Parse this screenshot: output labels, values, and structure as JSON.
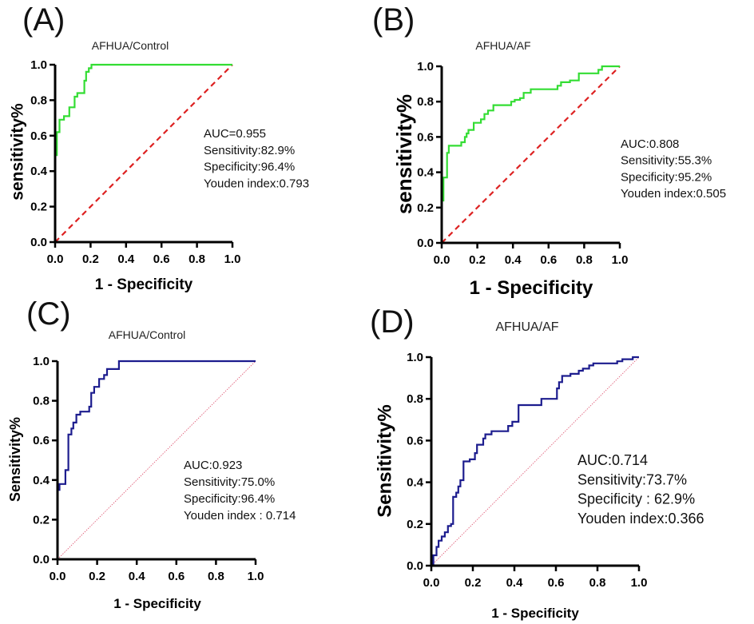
{
  "chart_data": [
    {
      "panel_label": "(A)",
      "type": "line",
      "title": "AFHUA/Control",
      "xlabel": "1 - Specificity",
      "ylabel": "sensitivity%",
      "xlim": [
        0,
        1
      ],
      "ylim": [
        0,
        1
      ],
      "xticks": [
        "0.0",
        "0.2",
        "0.4",
        "0.6",
        "0.8",
        "1.0"
      ],
      "yticks": [
        "0.0",
        "0.2",
        "0.4",
        "0.6",
        "0.8",
        "1.0"
      ],
      "curve_color": "#33dd33",
      "reference_color": "#dd2222",
      "reference_style": "dashed",
      "stats": [
        "AUC=0.955",
        "Sensitivity:82.9%",
        "Specificity:96.4%",
        "Youden index:0.793"
      ],
      "points": [
        [
          0,
          0
        ],
        [
          0,
          0.49
        ],
        [
          0.01,
          0.49
        ],
        [
          0.01,
          0.62
        ],
        [
          0.025,
          0.62
        ],
        [
          0.025,
          0.69
        ],
        [
          0.05,
          0.69
        ],
        [
          0.05,
          0.71
        ],
        [
          0.08,
          0.71
        ],
        [
          0.08,
          0.76
        ],
        [
          0.11,
          0.76
        ],
        [
          0.11,
          0.82
        ],
        [
          0.125,
          0.82
        ],
        [
          0.125,
          0.84
        ],
        [
          0.165,
          0.84
        ],
        [
          0.165,
          0.91
        ],
        [
          0.175,
          0.91
        ],
        [
          0.175,
          0.96
        ],
        [
          0.19,
          0.96
        ],
        [
          0.19,
          0.98
        ],
        [
          0.205,
          0.98
        ],
        [
          0.205,
          1
        ],
        [
          1,
          1
        ]
      ]
    },
    {
      "panel_label": "(B)",
      "type": "line",
      "title": "AFHUA/AF",
      "xlabel": "1 - Specificity",
      "ylabel": "sensitivity%",
      "xlim": [
        0,
        1
      ],
      "ylim": [
        0,
        1
      ],
      "xticks": [
        "0.0",
        "0.2",
        "0.4",
        "0.6",
        "0.8",
        "1.0"
      ],
      "yticks": [
        "0.0",
        "0.2",
        "0.4",
        "0.6",
        "0.8",
        "1.0"
      ],
      "curve_color": "#33dd33",
      "reference_color": "#dd2222",
      "reference_style": "dashed",
      "stats": [
        "AUC:0.808",
        "Sensitivity:55.3%",
        "Specificity:95.2%",
        "Youden index:0.505"
      ],
      "points": [
        [
          0,
          0
        ],
        [
          0,
          0.24
        ],
        [
          0.01,
          0.24
        ],
        [
          0.01,
          0.37
        ],
        [
          0.03,
          0.37
        ],
        [
          0.03,
          0.51
        ],
        [
          0.04,
          0.51
        ],
        [
          0.04,
          0.55
        ],
        [
          0.11,
          0.55
        ],
        [
          0.11,
          0.57
        ],
        [
          0.13,
          0.57
        ],
        [
          0.13,
          0.6
        ],
        [
          0.14,
          0.6
        ],
        [
          0.14,
          0.62
        ],
        [
          0.15,
          0.62
        ],
        [
          0.15,
          0.64
        ],
        [
          0.18,
          0.64
        ],
        [
          0.18,
          0.68
        ],
        [
          0.22,
          0.68
        ],
        [
          0.22,
          0.7
        ],
        [
          0.24,
          0.7
        ],
        [
          0.24,
          0.73
        ],
        [
          0.26,
          0.73
        ],
        [
          0.26,
          0.75
        ],
        [
          0.29,
          0.75
        ],
        [
          0.29,
          0.78
        ],
        [
          0.39,
          0.78
        ],
        [
          0.39,
          0.8
        ],
        [
          0.41,
          0.8
        ],
        [
          0.41,
          0.81
        ],
        [
          0.44,
          0.81
        ],
        [
          0.44,
          0.82
        ],
        [
          0.46,
          0.82
        ],
        [
          0.46,
          0.85
        ],
        [
          0.5,
          0.85
        ],
        [
          0.5,
          0.87
        ],
        [
          0.65,
          0.87
        ],
        [
          0.65,
          0.89
        ],
        [
          0.67,
          0.89
        ],
        [
          0.67,
          0.91
        ],
        [
          0.72,
          0.91
        ],
        [
          0.72,
          0.92
        ],
        [
          0.77,
          0.92
        ],
        [
          0.77,
          0.96
        ],
        [
          0.88,
          0.96
        ],
        [
          0.88,
          0.98
        ],
        [
          0.9,
          0.98
        ],
        [
          0.9,
          1
        ],
        [
          1,
          1
        ]
      ]
    },
    {
      "panel_label": "(C)",
      "type": "line",
      "title": "AFHUA/Control",
      "xlabel": "1 - Specificity",
      "ylabel": "Sensitivity%",
      "xlim": [
        0,
        1
      ],
      "ylim": [
        0,
        1
      ],
      "xticks": [
        "0.0",
        "0.2",
        "0.4",
        "0.6",
        "0.8",
        "1.0"
      ],
      "yticks": [
        "0.0",
        "0.2",
        "0.4",
        "0.6",
        "0.8",
        "1.0"
      ],
      "curve_color": "#1c1c8e",
      "reference_color": "#e0607a",
      "reference_style": "dotted",
      "stats": [
        "AUC:0.923",
        "Sensitivity:75.0%",
        "Specificity:96.4%",
        "Youden index : 0.714"
      ],
      "points": [
        [
          0,
          0
        ],
        [
          0,
          0.35
        ],
        [
          0.01,
          0.35
        ],
        [
          0.01,
          0.38
        ],
        [
          0.04,
          0.38
        ],
        [
          0.04,
          0.45
        ],
        [
          0.055,
          0.45
        ],
        [
          0.055,
          0.63
        ],
        [
          0.07,
          0.63
        ],
        [
          0.07,
          0.66
        ],
        [
          0.08,
          0.66
        ],
        [
          0.08,
          0.69
        ],
        [
          0.095,
          0.69
        ],
        [
          0.095,
          0.73
        ],
        [
          0.115,
          0.73
        ],
        [
          0.115,
          0.745
        ],
        [
          0.16,
          0.745
        ],
        [
          0.16,
          0.77
        ],
        [
          0.17,
          0.77
        ],
        [
          0.17,
          0.84
        ],
        [
          0.185,
          0.84
        ],
        [
          0.185,
          0.87
        ],
        [
          0.21,
          0.87
        ],
        [
          0.21,
          0.91
        ],
        [
          0.235,
          0.91
        ],
        [
          0.235,
          0.93
        ],
        [
          0.25,
          0.93
        ],
        [
          0.25,
          0.96
        ],
        [
          0.31,
          0.96
        ],
        [
          0.31,
          1
        ],
        [
          1,
          1
        ]
      ]
    },
    {
      "panel_label": "(D)",
      "type": "line",
      "title": "AFHUA/AF",
      "xlabel": "1 - Specificity",
      "ylabel": "Sensitivity%",
      "xlim": [
        0,
        1
      ],
      "ylim": [
        0,
        1
      ],
      "xticks": [
        "0.0",
        "0.2",
        "0.4",
        "0.6",
        "0.8",
        "1.0"
      ],
      "yticks": [
        "0.0",
        "0.2",
        "0.4",
        "0.6",
        "0.8",
        "1.0"
      ],
      "curve_color": "#1c1c8e",
      "reference_color": "#e0607a",
      "reference_style": "dotted",
      "stats": [
        "AUC:0.714",
        "Sensitivity:73.7%",
        "Specificity : 62.9%",
        "Youden index:0.366"
      ],
      "points": [
        [
          0,
          0
        ],
        [
          0.01,
          0
        ],
        [
          0.01,
          0.05
        ],
        [
          0.025,
          0.05
        ],
        [
          0.025,
          0.09
        ],
        [
          0.035,
          0.09
        ],
        [
          0.035,
          0.12
        ],
        [
          0.05,
          0.12
        ],
        [
          0.05,
          0.14
        ],
        [
          0.065,
          0.14
        ],
        [
          0.065,
          0.16
        ],
        [
          0.08,
          0.16
        ],
        [
          0.08,
          0.19
        ],
        [
          0.095,
          0.19
        ],
        [
          0.095,
          0.2
        ],
        [
          0.105,
          0.2
        ],
        [
          0.105,
          0.33
        ],
        [
          0.12,
          0.33
        ],
        [
          0.12,
          0.35
        ],
        [
          0.13,
          0.35
        ],
        [
          0.13,
          0.38
        ],
        [
          0.14,
          0.38
        ],
        [
          0.14,
          0.41
        ],
        [
          0.155,
          0.41
        ],
        [
          0.155,
          0.5
        ],
        [
          0.185,
          0.5
        ],
        [
          0.185,
          0.51
        ],
        [
          0.21,
          0.51
        ],
        [
          0.21,
          0.54
        ],
        [
          0.22,
          0.54
        ],
        [
          0.22,
          0.58
        ],
        [
          0.25,
          0.58
        ],
        [
          0.25,
          0.61
        ],
        [
          0.26,
          0.61
        ],
        [
          0.26,
          0.63
        ],
        [
          0.29,
          0.63
        ],
        [
          0.29,
          0.645
        ],
        [
          0.37,
          0.645
        ],
        [
          0.37,
          0.67
        ],
        [
          0.39,
          0.67
        ],
        [
          0.39,
          0.69
        ],
        [
          0.42,
          0.69
        ],
        [
          0.42,
          0.77
        ],
        [
          0.53,
          0.77
        ],
        [
          0.53,
          0.8
        ],
        [
          0.605,
          0.8
        ],
        [
          0.605,
          0.85
        ],
        [
          0.615,
          0.85
        ],
        [
          0.615,
          0.88
        ],
        [
          0.63,
          0.88
        ],
        [
          0.63,
          0.91
        ],
        [
          0.67,
          0.91
        ],
        [
          0.67,
          0.92
        ],
        [
          0.71,
          0.92
        ],
        [
          0.71,
          0.935
        ],
        [
          0.73,
          0.935
        ],
        [
          0.73,
          0.945
        ],
        [
          0.76,
          0.945
        ],
        [
          0.76,
          0.96
        ],
        [
          0.78,
          0.96
        ],
        [
          0.78,
          0.97
        ],
        [
          0.895,
          0.97
        ],
        [
          0.895,
          0.98
        ],
        [
          0.92,
          0.98
        ],
        [
          0.92,
          0.99
        ],
        [
          0.97,
          0.99
        ],
        [
          0.97,
          1
        ],
        [
          1,
          1
        ]
      ]
    }
  ]
}
